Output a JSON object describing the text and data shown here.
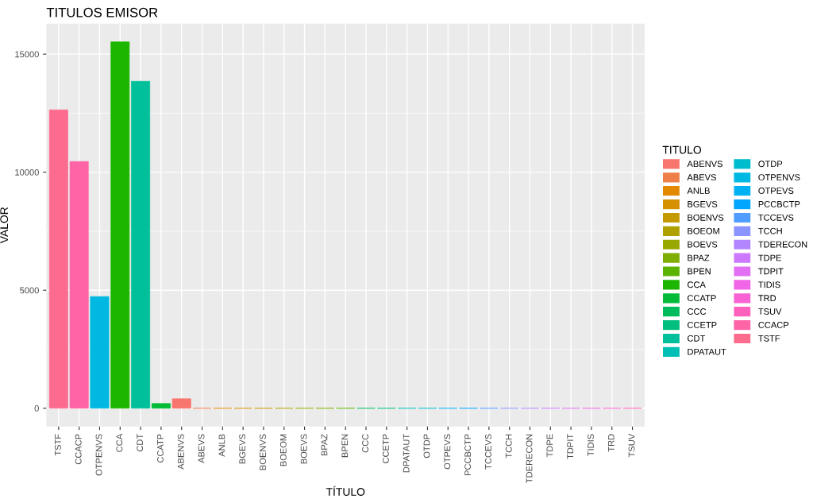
{
  "chart_data": {
    "type": "bar",
    "title": "TITULOS EMISOR",
    "xlabel": "TÍTULO",
    "ylabel": "VALOR",
    "legend_title": "TITULO",
    "categories": [
      "TSTF",
      "CCACP",
      "OTPENVS",
      "CCA",
      "CDT",
      "CCATP",
      "ABENVS",
      "ABEVS",
      "ANLB",
      "BGEVS",
      "BOENVS",
      "BOEOM",
      "BOEVS",
      "BPAZ",
      "BPEN",
      "CCC",
      "CCETP",
      "DPATAUT",
      "OTDP",
      "OTPEVS",
      "PCCBCTP",
      "TCCEVS",
      "TCCH",
      "TDERECON",
      "TDPE",
      "TDPIT",
      "TIDIS",
      "TRD",
      "TSUV"
    ],
    "series": [
      {
        "name": "ABENVS",
        "color": "#f8766d",
        "values": [
          null,
          null,
          null,
          null,
          null,
          null,
          400,
          null,
          null,
          null,
          null,
          null,
          null,
          null,
          null,
          null,
          null,
          null,
          null,
          null,
          null,
          null,
          null,
          null,
          null,
          null,
          null,
          null,
          null
        ]
      },
      {
        "name": "ABEVS",
        "color": "#ef7f49",
        "values": [
          null,
          null,
          null,
          null,
          null,
          null,
          null,
          0,
          null,
          null,
          null,
          null,
          null,
          null,
          null,
          null,
          null,
          null,
          null,
          null,
          null,
          null,
          null,
          null,
          null,
          null,
          null,
          null,
          null
        ]
      },
      {
        "name": "ANLB",
        "color": "#e38900",
        "values": [
          null,
          null,
          null,
          null,
          null,
          null,
          null,
          null,
          0,
          null,
          null,
          null,
          null,
          null,
          null,
          null,
          null,
          null,
          null,
          null,
          null,
          null,
          null,
          null,
          null,
          null,
          null,
          null,
          null
        ]
      },
      {
        "name": "BGEVS",
        "color": "#d59100",
        "values": [
          null,
          null,
          null,
          null,
          null,
          null,
          null,
          null,
          null,
          0,
          null,
          null,
          null,
          null,
          null,
          null,
          null,
          null,
          null,
          null,
          null,
          null,
          null,
          null,
          null,
          null,
          null,
          null,
          null
        ]
      },
      {
        "name": "BOENVS",
        "color": "#c49a00",
        "values": [
          null,
          null,
          null,
          null,
          null,
          null,
          null,
          null,
          null,
          null,
          0,
          null,
          null,
          null,
          null,
          null,
          null,
          null,
          null,
          null,
          null,
          null,
          null,
          null,
          null,
          null,
          null,
          null,
          null
        ]
      },
      {
        "name": "BOEOM",
        "color": "#b0a100",
        "values": [
          null,
          null,
          null,
          null,
          null,
          null,
          null,
          null,
          null,
          null,
          null,
          0,
          null,
          null,
          null,
          null,
          null,
          null,
          null,
          null,
          null,
          null,
          null,
          null,
          null,
          null,
          null,
          null,
          null
        ]
      },
      {
        "name": "BOEVS",
        "color": "#99a800",
        "values": [
          null,
          null,
          null,
          null,
          null,
          null,
          null,
          null,
          null,
          null,
          null,
          null,
          0,
          null,
          null,
          null,
          null,
          null,
          null,
          null,
          null,
          null,
          null,
          null,
          null,
          null,
          null,
          null,
          null
        ]
      },
      {
        "name": "BPAZ",
        "color": "#7dae00",
        "values": [
          null,
          null,
          null,
          null,
          null,
          null,
          null,
          null,
          null,
          null,
          null,
          null,
          null,
          0,
          null,
          null,
          null,
          null,
          null,
          null,
          null,
          null,
          null,
          null,
          null,
          null,
          null,
          null,
          null
        ]
      },
      {
        "name": "BPEN",
        "color": "#5bb300",
        "values": [
          null,
          null,
          null,
          null,
          null,
          null,
          null,
          null,
          null,
          null,
          null,
          null,
          null,
          null,
          0,
          null,
          null,
          null,
          null,
          null,
          null,
          null,
          null,
          null,
          null,
          null,
          null,
          null,
          null
        ]
      },
      {
        "name": "CCA",
        "color": "#1cb600",
        "values": [
          null,
          null,
          null,
          15520,
          null,
          null,
          null,
          null,
          null,
          null,
          null,
          null,
          null,
          null,
          null,
          null,
          null,
          null,
          null,
          null,
          null,
          null,
          null,
          null,
          null,
          null,
          null,
          null,
          null
        ]
      },
      {
        "name": "CCATP",
        "color": "#00ba38",
        "values": [
          null,
          null,
          null,
          null,
          null,
          200,
          null,
          null,
          null,
          null,
          null,
          null,
          null,
          null,
          null,
          null,
          null,
          null,
          null,
          null,
          null,
          null,
          null,
          null,
          null,
          null,
          null,
          null,
          null
        ]
      },
      {
        "name": "CCC",
        "color": "#00bc5c",
        "values": [
          null,
          null,
          null,
          null,
          null,
          null,
          null,
          null,
          null,
          null,
          null,
          null,
          null,
          null,
          null,
          0,
          null,
          null,
          null,
          null,
          null,
          null,
          null,
          null,
          null,
          null,
          null,
          null,
          null
        ]
      },
      {
        "name": "CCETP",
        "color": "#00be7d",
        "values": [
          null,
          null,
          null,
          null,
          null,
          null,
          null,
          null,
          null,
          null,
          null,
          null,
          null,
          null,
          null,
          null,
          0,
          null,
          null,
          null,
          null,
          null,
          null,
          null,
          null,
          null,
          null,
          null,
          null
        ]
      },
      {
        "name": "CDT",
        "color": "#00c09b",
        "values": [
          null,
          null,
          null,
          null,
          13850,
          null,
          null,
          null,
          null,
          null,
          null,
          null,
          null,
          null,
          null,
          null,
          null,
          null,
          null,
          null,
          null,
          null,
          null,
          null,
          null,
          null,
          null,
          null,
          null
        ]
      },
      {
        "name": "DPATAUT",
        "color": "#00c0b5",
        "values": [
          null,
          null,
          null,
          null,
          null,
          null,
          null,
          null,
          null,
          null,
          null,
          null,
          null,
          null,
          null,
          null,
          null,
          0,
          null,
          null,
          null,
          null,
          null,
          null,
          null,
          null,
          null,
          null,
          null
        ]
      },
      {
        "name": "OTDP",
        "color": "#00bdcd",
        "values": [
          null,
          null,
          null,
          null,
          null,
          null,
          null,
          null,
          null,
          null,
          null,
          null,
          null,
          null,
          null,
          null,
          null,
          null,
          0,
          null,
          null,
          null,
          null,
          null,
          null,
          null,
          null,
          null,
          null
        ]
      },
      {
        "name": "OTPENVS",
        "color": "#00b8e2",
        "values": [
          null,
          null,
          4730,
          null,
          null,
          null,
          null,
          null,
          null,
          null,
          null,
          null,
          null,
          null,
          null,
          null,
          null,
          null,
          null,
          null,
          null,
          null,
          null,
          null,
          null,
          null,
          null,
          null,
          null
        ]
      },
      {
        "name": "OTPEVS",
        "color": "#00b1f4",
        "values": [
          null,
          null,
          null,
          null,
          null,
          null,
          null,
          null,
          null,
          null,
          null,
          null,
          null,
          null,
          null,
          null,
          null,
          null,
          null,
          0,
          null,
          null,
          null,
          null,
          null,
          null,
          null,
          null,
          null
        ]
      },
      {
        "name": "PCCBCTP",
        "color": "#00a6ff",
        "values": [
          null,
          null,
          null,
          null,
          null,
          null,
          null,
          null,
          null,
          null,
          null,
          null,
          null,
          null,
          null,
          null,
          null,
          null,
          null,
          null,
          0,
          null,
          null,
          null,
          null,
          null,
          null,
          null,
          null
        ]
      },
      {
        "name": "TCCEVS",
        "color": "#4f9dff",
        "values": [
          null,
          null,
          null,
          null,
          null,
          null,
          null,
          null,
          null,
          null,
          null,
          null,
          null,
          null,
          null,
          null,
          null,
          null,
          null,
          null,
          null,
          0,
          null,
          null,
          null,
          null,
          null,
          null,
          null
        ]
      },
      {
        "name": "TCCH",
        "color": "#8b93ff",
        "values": [
          null,
          null,
          null,
          null,
          null,
          null,
          null,
          null,
          null,
          null,
          null,
          null,
          null,
          null,
          null,
          null,
          null,
          null,
          null,
          null,
          null,
          null,
          0,
          null,
          null,
          null,
          null,
          null,
          null
        ]
      },
      {
        "name": "TDERECON",
        "color": "#b186ff",
        "values": [
          null,
          null,
          null,
          null,
          null,
          null,
          null,
          null,
          null,
          null,
          null,
          null,
          null,
          null,
          null,
          null,
          null,
          null,
          null,
          null,
          null,
          null,
          null,
          0,
          null,
          null,
          null,
          null,
          null
        ]
      },
      {
        "name": "TDPE",
        "color": "#cd79ff",
        "values": [
          null,
          null,
          null,
          null,
          null,
          null,
          null,
          null,
          null,
          null,
          null,
          null,
          null,
          null,
          null,
          null,
          null,
          null,
          null,
          null,
          null,
          null,
          null,
          null,
          0,
          null,
          null,
          null,
          null
        ]
      },
      {
        "name": "TDPIT",
        "color": "#e26ff4",
        "values": [
          null,
          null,
          null,
          null,
          null,
          null,
          null,
          null,
          null,
          null,
          null,
          null,
          null,
          null,
          null,
          null,
          null,
          null,
          null,
          null,
          null,
          null,
          null,
          null,
          null,
          0,
          null,
          null,
          null
        ]
      },
      {
        "name": "TIDIS",
        "color": "#f066e6",
        "values": [
          null,
          null,
          null,
          null,
          null,
          null,
          null,
          null,
          null,
          null,
          null,
          null,
          null,
          null,
          null,
          null,
          null,
          null,
          null,
          null,
          null,
          null,
          null,
          null,
          null,
          null,
          0,
          null,
          null
        ]
      },
      {
        "name": "TRD",
        "color": "#f962d3",
        "values": [
          null,
          null,
          null,
          null,
          null,
          null,
          null,
          null,
          null,
          null,
          null,
          null,
          null,
          null,
          null,
          null,
          null,
          null,
          null,
          null,
          null,
          null,
          null,
          null,
          null,
          null,
          null,
          0,
          null
        ]
      },
      {
        "name": "TSUV",
        "color": "#ff61bd",
        "values": [
          null,
          null,
          null,
          null,
          null,
          null,
          null,
          null,
          null,
          null,
          null,
          null,
          null,
          null,
          null,
          null,
          null,
          null,
          null,
          null,
          null,
          null,
          null,
          null,
          null,
          null,
          null,
          null,
          0
        ]
      },
      {
        "name": "CCACP",
        "color": "#ff64a6",
        "values": [
          null,
          10450,
          null,
          null,
          null,
          null,
          null,
          null,
          null,
          null,
          null,
          null,
          null,
          null,
          null,
          null,
          null,
          null,
          null,
          null,
          null,
          null,
          null,
          null,
          null,
          null,
          null,
          null,
          null
        ]
      },
      {
        "name": "TSTF",
        "color": "#fd6c8e",
        "values": [
          12640,
          null,
          null,
          null,
          null,
          null,
          null,
          null,
          null,
          null,
          null,
          null,
          null,
          null,
          null,
          null,
          null,
          null,
          null,
          null,
          null,
          null,
          null,
          null,
          null,
          null,
          null,
          null,
          null
        ]
      }
    ],
    "ylim": [
      -776,
      16292
    ],
    "yticks": [
      0,
      5000,
      10000,
      15000
    ],
    "grid": true,
    "legend": "right"
  }
}
